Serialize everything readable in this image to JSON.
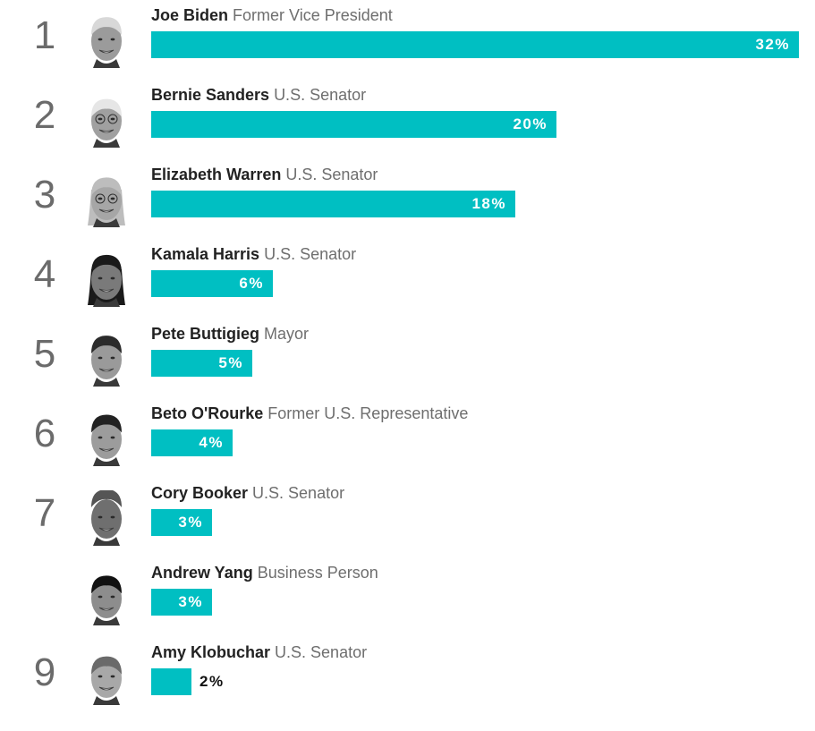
{
  "chart_data": {
    "type": "bar",
    "orientation": "horizontal",
    "bar_color": "#00bfc2",
    "xlim": [
      0,
      32
    ],
    "value_suffix": "%",
    "candidates": [
      {
        "rank": "1",
        "name": "Joe Biden",
        "title": "Former Vice President",
        "value": 32,
        "label": "32%",
        "avatar": "joe-biden-portrait"
      },
      {
        "rank": "2",
        "name": "Bernie Sanders",
        "title": "U.S. Senator",
        "value": 20,
        "label": "20%",
        "avatar": "bernie-sanders-portrait"
      },
      {
        "rank": "3",
        "name": "Elizabeth Warren",
        "title": "U.S. Senator",
        "value": 18,
        "label": "18%",
        "avatar": "elizabeth-warren-portrait"
      },
      {
        "rank": "4",
        "name": "Kamala Harris",
        "title": "U.S. Senator",
        "value": 6,
        "label": "6%",
        "avatar": "kamala-harris-portrait"
      },
      {
        "rank": "5",
        "name": "Pete Buttigieg",
        "title": "Mayor",
        "value": 5,
        "label": "5%",
        "avatar": "pete-buttigieg-portrait"
      },
      {
        "rank": "6",
        "name": "Beto O'Rourke",
        "title": "Former U.S. Representative",
        "value": 4,
        "label": "4%",
        "avatar": "beto-orourke-portrait"
      },
      {
        "rank": "7",
        "name": "Cory Booker",
        "title": "U.S. Senator",
        "value": 3,
        "label": "3%",
        "avatar": "cory-booker-portrait"
      },
      {
        "rank": "",
        "name": "Andrew Yang",
        "title": "Business Person",
        "value": 3,
        "label": "3%",
        "avatar": "andrew-yang-portrait"
      },
      {
        "rank": "9",
        "name": "Amy Klobuchar",
        "title": "U.S. Senator",
        "value": 2,
        "label": "2%",
        "avatar": "amy-klobuchar-portrait"
      }
    ]
  }
}
